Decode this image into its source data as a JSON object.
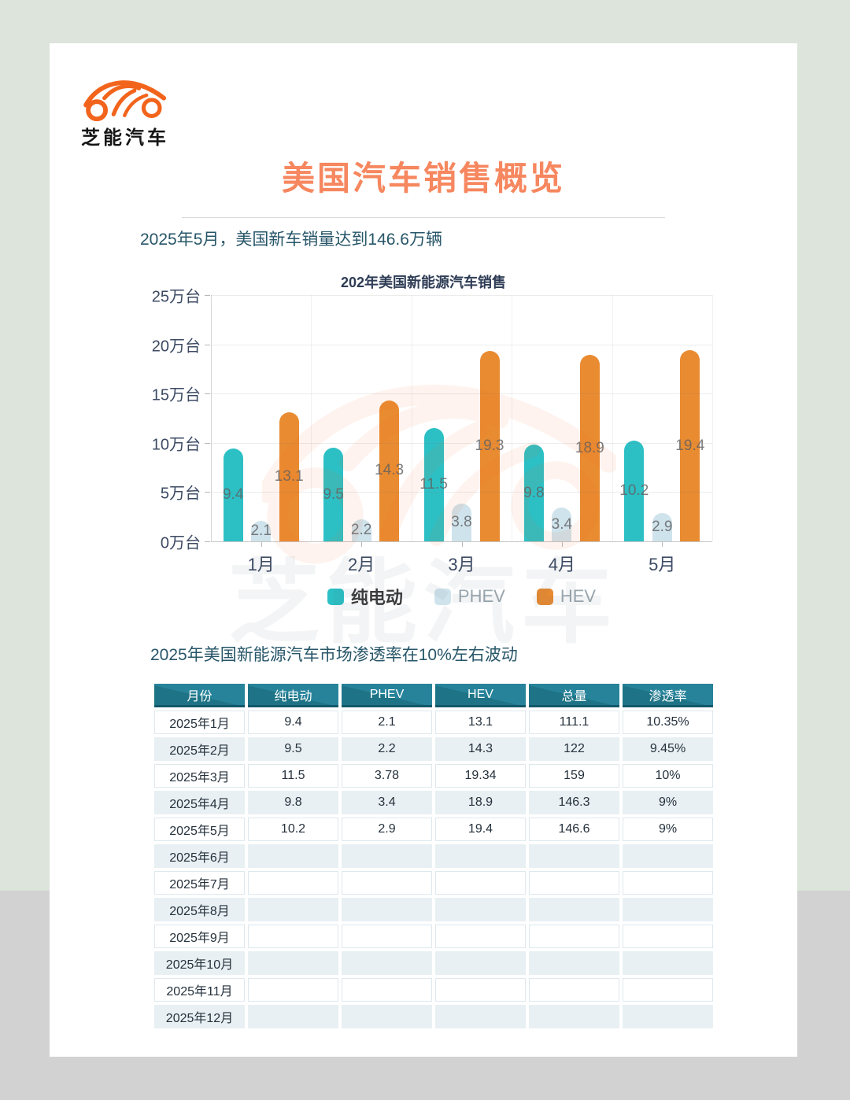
{
  "brand": {
    "name": "芝能汽车"
  },
  "header": {
    "title": "美国汽车销售概览"
  },
  "intro": {
    "text": "2025年5月，美国新车销量达到146.6万辆"
  },
  "section2": {
    "text": "2025年美国新能源汽车市场渗透率在10%左右波动"
  },
  "watermark": {
    "text": "芝能汽车"
  },
  "chart_data": {
    "type": "bar",
    "title": "202年美国新能源汽车销售",
    "categories": [
      "1月",
      "2月",
      "3月",
      "4月",
      "5月"
    ],
    "series": [
      {
        "name": "纯电动",
        "color": "#2cc0c5",
        "values": [
          9.4,
          9.5,
          11.5,
          9.8,
          10.2
        ]
      },
      {
        "name": "PHEV",
        "color": "#cfe3ec",
        "values": [
          2.1,
          2.2,
          3.8,
          3.4,
          2.9
        ]
      },
      {
        "name": "HEV",
        "color": "#e98b31",
        "values": [
          13.1,
          14.3,
          19.3,
          18.9,
          19.4
        ]
      }
    ],
    "y_axis": {
      "unit": "万台",
      "min": 0,
      "max": 25,
      "tick_step": 5,
      "tick_labels": [
        "0万台",
        "5万台",
        "10万台",
        "15万台",
        "20万台",
        "25万台"
      ]
    },
    "xlabel": "",
    "ylabel": "",
    "grid": true,
    "legend_position": "bottom"
  },
  "table": {
    "headers": [
      "月份",
      "纯电动",
      "PHEV",
      "HEV",
      "总量",
      "渗透率"
    ],
    "rows": [
      [
        "2025年1月",
        "9.4",
        "2.1",
        "13.1",
        "111.1",
        "10.35%"
      ],
      [
        "2025年2月",
        "9.5",
        "2.2",
        "14.3",
        "122",
        "9.45%"
      ],
      [
        "2025年3月",
        "11.5",
        "3.78",
        "19.34",
        "159",
        "10%"
      ],
      [
        "2025年4月",
        "9.8",
        "3.4",
        "18.9",
        "146.3",
        "9%"
      ],
      [
        "2025年5月",
        "10.2",
        "2.9",
        "19.4",
        "146.6",
        "9%"
      ],
      [
        "2025年6月",
        "",
        "",
        "",
        "",
        ""
      ],
      [
        "2025年7月",
        "",
        "",
        "",
        "",
        ""
      ],
      [
        "2025年8月",
        "",
        "",
        "",
        "",
        ""
      ],
      [
        "2025年9月",
        "",
        "",
        "",
        "",
        ""
      ],
      [
        "2025年10月",
        "",
        "",
        "",
        "",
        ""
      ],
      [
        "2025年11月",
        "",
        "",
        "",
        "",
        ""
      ],
      [
        "2025年12月",
        "",
        "",
        "",
        "",
        ""
      ]
    ]
  },
  "colors": {
    "logo_orange": "#f2641c",
    "title_orange": "#f6875f",
    "bev_teal": "#2cc0c5",
    "phev_blue": "#cfe3ec",
    "hev_orange": "#e98b31",
    "table_header_teal": "#21798c",
    "page_bg_green": "#dce4db",
    "page_bg_gray": "#d2d2d2",
    "dark_teal_text": "#275669"
  }
}
